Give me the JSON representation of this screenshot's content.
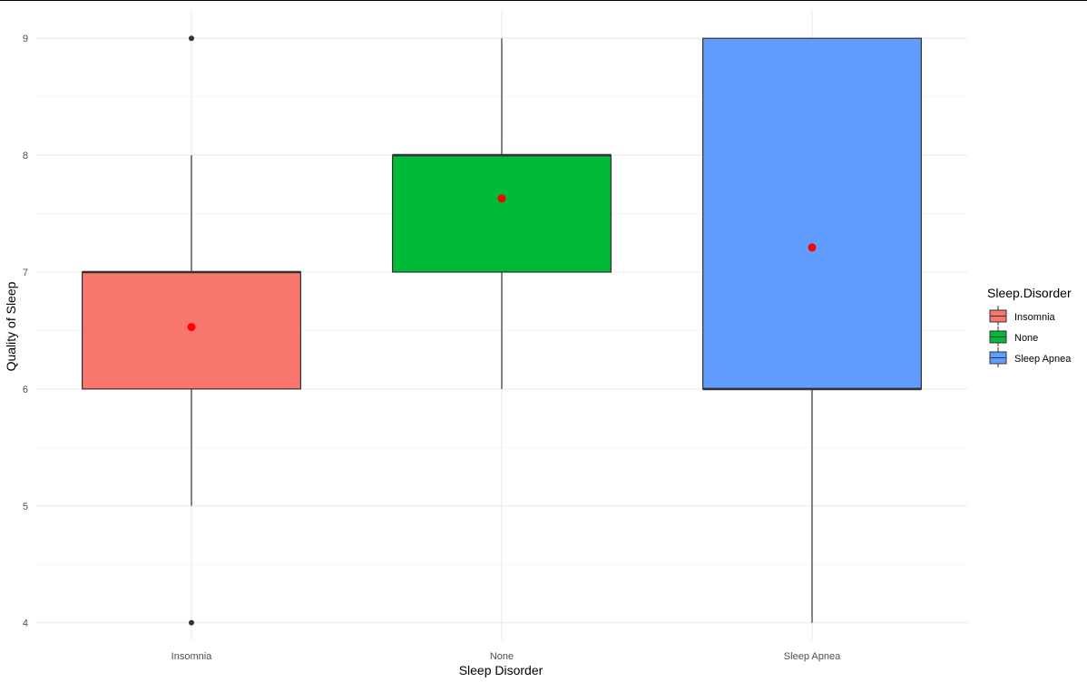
{
  "chart_data": {
    "type": "boxplot",
    "xlabel": "Sleep Disorder",
    "ylabel": "Quality of Sleep",
    "ylim": [
      3.85,
      9.25
    ],
    "yticks": [
      4,
      5,
      6,
      7,
      8,
      9
    ],
    "categories": [
      "Insomnia",
      "None",
      "Sleep Apnea"
    ],
    "boxes": [
      {
        "category": "Insomnia",
        "min": 5,
        "q1": 6,
        "median": 7,
        "q3": 7,
        "max": 8,
        "mean": 6.53,
        "outliers": [
          4,
          9
        ],
        "fill": "#F8766D"
      },
      {
        "category": "None",
        "min": 6,
        "q1": 7,
        "median": 8,
        "q3": 8,
        "max": 9,
        "mean": 7.63,
        "outliers": [],
        "fill": "#00BA38"
      },
      {
        "category": "Sleep Apnea",
        "min": 4,
        "q1": 6,
        "median": 6,
        "q3": 9,
        "max": 9,
        "mean": 7.21,
        "outliers": [],
        "fill": "#619CFF"
      }
    ],
    "mean_color": "#FF0000",
    "grid": true,
    "legend": {
      "title": "Sleep.Disorder",
      "position": "right",
      "items": [
        {
          "label": "Insomnia",
          "fill": "#F8766D"
        },
        {
          "label": "None",
          "fill": "#00BA38"
        },
        {
          "label": "Sleep Apnea",
          "fill": "#619CFF"
        }
      ]
    }
  }
}
